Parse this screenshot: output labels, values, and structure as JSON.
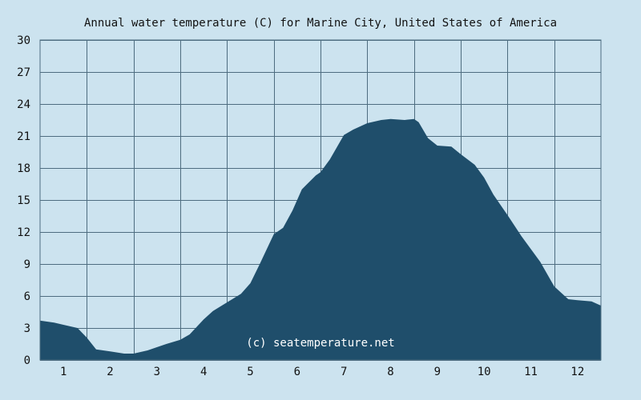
{
  "chart_data": {
    "type": "area",
    "title": "Annual water temperature (C) for Marine City, United States of America",
    "xlabel": "",
    "ylabel": "",
    "x_ticks": [
      "1",
      "2",
      "3",
      "4",
      "5",
      "6",
      "7",
      "8",
      "9",
      "10",
      "11",
      "12"
    ],
    "ylim": [
      0,
      30
    ],
    "y_ticks": [
      0,
      3,
      6,
      9,
      12,
      15,
      18,
      21,
      24,
      27,
      30
    ],
    "grid": true,
    "legend": "none",
    "watermark": "(c) seatemperature.net",
    "colors": {
      "fill": "#1f4e6b",
      "background": "#cce3ef",
      "grid": "#4e6d80"
    },
    "x": [
      0.5,
      0.8,
      1.0,
      1.3,
      1.5,
      1.7,
      2.0,
      2.3,
      2.5,
      2.8,
      3.0,
      3.2,
      3.5,
      3.7,
      4.0,
      4.2,
      4.5,
      4.8,
      5.0,
      5.2,
      5.5,
      5.7,
      5.9,
      6.1,
      6.4,
      6.5,
      6.7,
      7.0,
      7.2,
      7.5,
      7.8,
      8.0,
      8.3,
      8.5,
      8.6,
      8.8,
      9.0,
      9.3,
      9.5,
      9.8,
      10.0,
      10.2,
      10.5,
      10.8,
      11.0,
      11.2,
      11.5,
      11.8,
      12.0,
      12.3,
      12.5
    ],
    "y": [
      3.7,
      3.5,
      3.3,
      3.0,
      2.1,
      1.0,
      0.8,
      0.6,
      0.6,
      0.9,
      1.2,
      1.5,
      1.9,
      2.4,
      3.8,
      4.6,
      5.4,
      6.2,
      7.2,
      9.0,
      11.8,
      12.4,
      14.0,
      16.0,
      17.3,
      17.6,
      18.8,
      21.1,
      21.6,
      22.2,
      22.5,
      22.6,
      22.5,
      22.6,
      22.3,
      20.8,
      20.1,
      20.0,
      19.3,
      18.3,
      17.1,
      15.5,
      13.6,
      11.6,
      10.4,
      9.2,
      6.9,
      5.7,
      5.6,
      5.5,
      5.1
    ]
  }
}
